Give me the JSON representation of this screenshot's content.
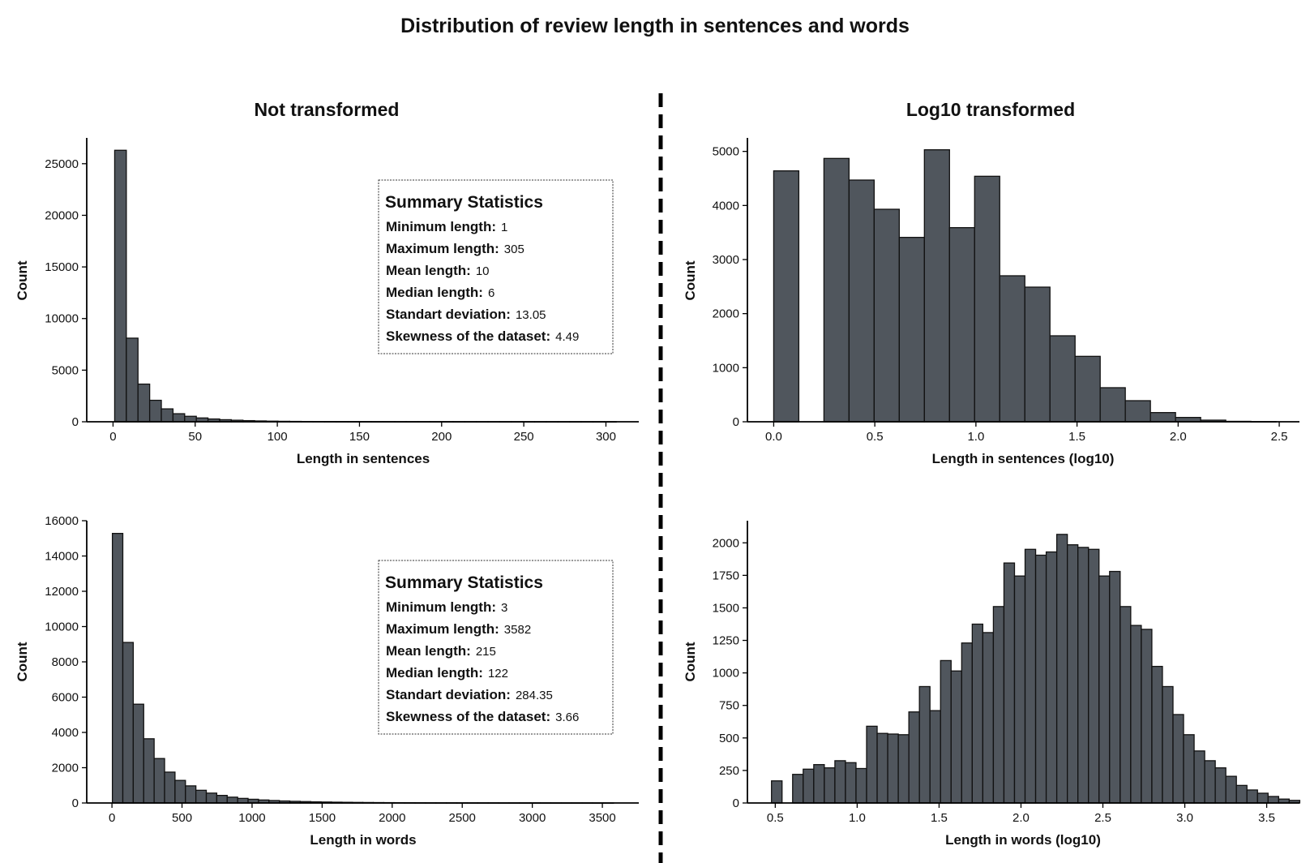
{
  "title": "Distribution of review length in sentences and words",
  "columns": {
    "left": "Not transformed",
    "right": "Log10 transformed"
  },
  "style": {
    "bar_fill": "#50565d",
    "bar_edge": "#111111",
    "divider": "#000000"
  },
  "chart_data": [
    {
      "id": "sent-raw",
      "type": "bar",
      "title": "",
      "xlabel": "Length in sentences",
      "ylabel": "Count",
      "xlim": [
        -16,
        320
      ],
      "ylim": [
        0,
        27500
      ],
      "xticks": [
        0,
        50,
        100,
        150,
        200,
        250,
        300
      ],
      "yticks": [
        0,
        5000,
        10000,
        15000,
        20000,
        25000
      ],
      "bin_start": 1,
      "bin_width": 7.1,
      "values": [
        26300,
        8100,
        3650,
        2080,
        1250,
        780,
        530,
        370,
        270,
        200,
        150,
        110,
        80,
        60,
        45,
        35,
        28,
        22,
        18,
        14,
        11,
        9,
        7,
        6,
        5,
        4,
        4,
        3,
        3,
        2,
        2,
        2,
        2,
        1,
        1,
        1,
        1,
        1,
        1,
        1,
        1,
        1,
        1
      ],
      "summary": {
        "title": "Summary Statistics",
        "rows": [
          {
            "label": "Minimum length:",
            "value": "1"
          },
          {
            "label": "Maximum length:",
            "value": "305"
          },
          {
            "label": "Mean length:",
            "value": "10"
          },
          {
            "label": "Median length:",
            "value": "6"
          },
          {
            "label": "Standart deviation:",
            "value": "13.05"
          },
          {
            "label": "Skewness of the dataset:",
            "value": "4.49"
          }
        ]
      }
    },
    {
      "id": "sent-log",
      "type": "bar",
      "title": "",
      "xlabel": "Length in sentences (log10)",
      "ylabel": "Count",
      "xlim": [
        -0.13,
        2.6
      ],
      "ylim": [
        0,
        5250
      ],
      "xticks": [
        0.0,
        0.5,
        1.0,
        1.5,
        2.0,
        2.5
      ],
      "yticks": [
        0,
        1000,
        2000,
        3000,
        4000,
        5000
      ],
      "bin_start": 0,
      "bin_width": 0.1242,
      "values": [
        4640,
        0,
        4870,
        4470,
        3930,
        3410,
        5030,
        3590,
        4540,
        2700,
        2490,
        1590,
        1210,
        630,
        390,
        170,
        80,
        30,
        8,
        2
      ]
    },
    {
      "id": "words-raw",
      "type": "bar",
      "title": "",
      "xlabel": "Length in words",
      "ylabel": "Count",
      "xlim": [
        -180,
        3760
      ],
      "ylim": [
        0,
        16000
      ],
      "xticks": [
        0,
        500,
        1000,
        1500,
        2000,
        2500,
        3000,
        3500
      ],
      "yticks": [
        0,
        2000,
        4000,
        6000,
        8000,
        10000,
        12000,
        14000,
        16000
      ],
      "bin_start": 3,
      "bin_width": 74.5,
      "values": [
        15280,
        9100,
        5600,
        3640,
        2520,
        1750,
        1280,
        970,
        720,
        560,
        430,
        330,
        260,
        210,
        170,
        140,
        115,
        95,
        80,
        65,
        55,
        45,
        38,
        32,
        27,
        23,
        20,
        17,
        14,
        12,
        10,
        9,
        8,
        7,
        6,
        5,
        5,
        4,
        4,
        3,
        3,
        3,
        2,
        2,
        2,
        2,
        1,
        1
      ]
    },
    {
      "id": "words-log",
      "type": "bar",
      "title": "",
      "xlabel": "Length in words (log10)",
      "ylabel": "Count",
      "xlim": [
        0.33,
        3.7
      ],
      "ylim": [
        0,
        2170
      ],
      "xticks": [
        0.5,
        1.0,
        1.5,
        2.0,
        2.5,
        3.0,
        3.5
      ],
      "yticks": [
        0,
        250,
        500,
        750,
        1000,
        1250,
        1500,
        1750,
        2000
      ],
      "bin_start": 0.477,
      "bin_width": 0.0645,
      "values": [
        170,
        0,
        220,
        260,
        295,
        270,
        325,
        310,
        265,
        590,
        535,
        530,
        525,
        700,
        895,
        710,
        1095,
        1015,
        1230,
        1375,
        1310,
        1510,
        1845,
        1745,
        1950,
        1905,
        1930,
        2065,
        1985,
        1965,
        1950,
        1745,
        1780,
        1510,
        1365,
        1335,
        1050,
        895,
        680,
        525,
        400,
        325,
        270,
        205,
        135,
        100,
        75,
        50,
        30,
        20
      ]
    }
  ],
  "summaries": [
    {
      "title": "Summary Statistics",
      "rows": [
        {
          "label": "Minimum length:",
          "value": "1"
        },
        {
          "label": "Maximum length:",
          "value": "305"
        },
        {
          "label": "Mean length:",
          "value": "10"
        },
        {
          "label": "Median length:",
          "value": "6"
        },
        {
          "label": "Standart deviation:",
          "value": "13.05"
        },
        {
          "label": "Skewness of the dataset:",
          "value": "4.49"
        }
      ]
    },
    {
      "title": "Summary Statistics",
      "rows": [
        {
          "label": "Minimum length:",
          "value": "3"
        },
        {
          "label": "Maximum length:",
          "value": "3582"
        },
        {
          "label": "Mean length:",
          "value": "215"
        },
        {
          "label": "Median length:",
          "value": "122"
        },
        {
          "label": "Standart deviation:",
          "value": "284.35"
        },
        {
          "label": "Skewness of the dataset:",
          "value": "3.66"
        }
      ]
    }
  ]
}
